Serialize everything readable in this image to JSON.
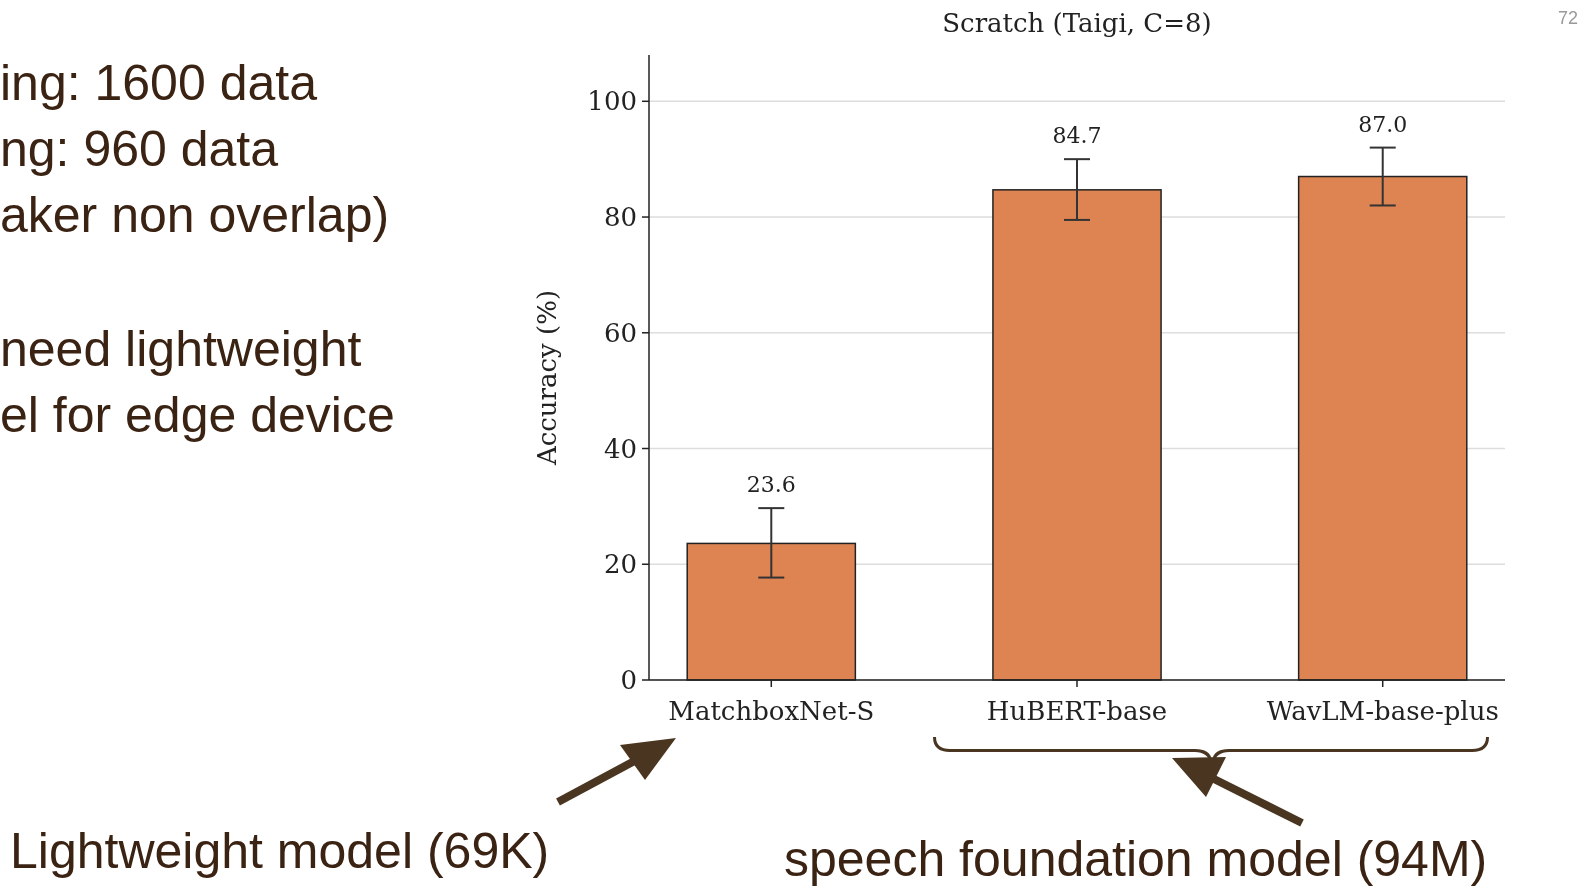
{
  "chart_data": {
    "type": "bar",
    "title": "Scratch (Taigi, C=8)",
    "ylabel": "Accuracy (%)",
    "categories": [
      "MatchboxNet-S",
      "HuBERT-base",
      "WavLM-base-plus"
    ],
    "values": [
      23.6,
      84.7,
      87.0
    ],
    "errors": [
      [
        17.7,
        29.7
      ],
      [
        79.5,
        90.0
      ],
      [
        82.0,
        92.0
      ]
    ],
    "value_labels": [
      "23.6",
      "84.7",
      "87.0"
    ],
    "color": "#dd8452",
    "ylim": [
      0,
      108
    ],
    "yticks": [
      0,
      20,
      40,
      60,
      80,
      100
    ],
    "grid": "y",
    "annotations": [
      "ing: 1600 data",
      "ng: 960 data",
      "aker non overlap)",
      "need lightweight",
      "el for edge device",
      "Lightweight model (69K)",
      "speech foundation model (94M)",
      "72"
    ]
  }
}
